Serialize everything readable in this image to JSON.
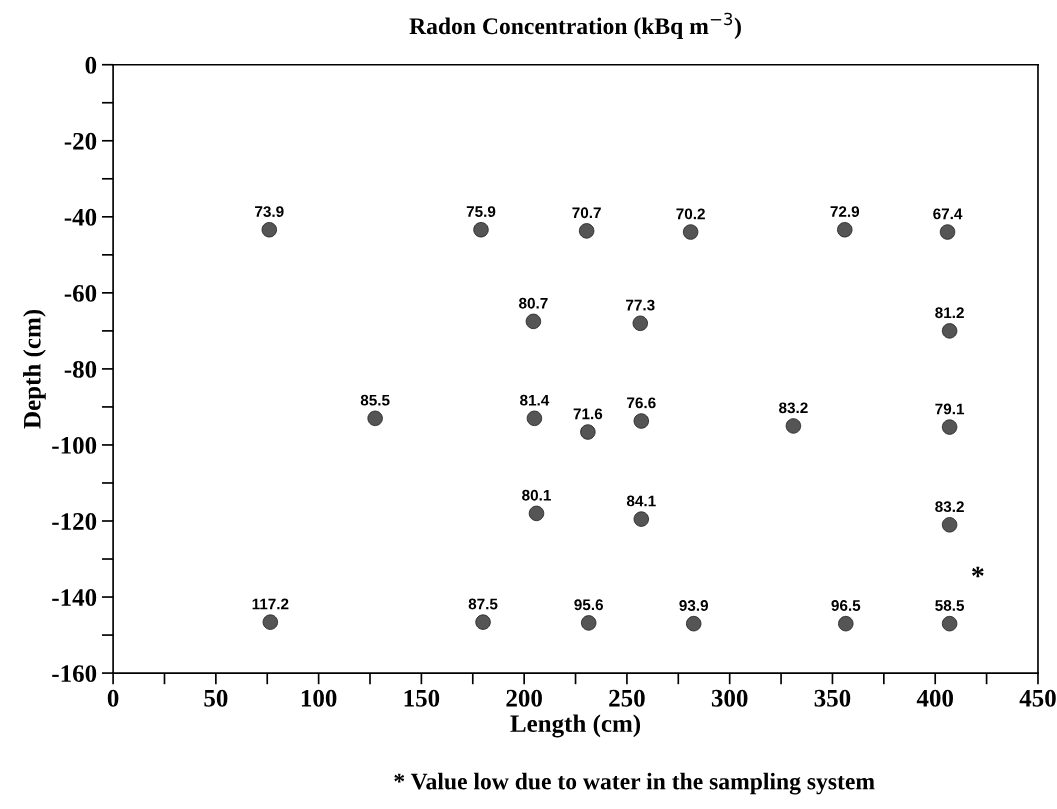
{
  "chart_data": {
    "type": "scatter",
    "title": "Radon Concentration (kBq m$^{−3}$)",
    "xlabel": "Length (cm)",
    "ylabel": "Depth (cm)",
    "x": [
      76,
      179,
      230.4,
      281,
      356,
      406,
      204.5,
      256.5,
      407,
      127.5,
      205,
      231,
      257,
      331,
      407,
      206,
      257,
      407,
      76.5,
      180,
      231.4,
      282.5,
      356.5,
      407
    ],
    "series": [
      {
        "color": "#555555",
        "values": [
          -43.4,
          -43.4,
          -43.7,
          -44,
          -43.4,
          -44,
          -67.5,
          -68,
          -70,
          -93,
          -93,
          -96.6,
          -93.7,
          -95,
          -95.3,
          -118,
          -119.5,
          -121,
          -146.6,
          -146.6,
          -146.8,
          -147,
          -147,
          -147
        ]
      }
    ],
    "xlim": [
      0,
      450
    ],
    "ylim": [
      -160,
      0
    ],
    "xticks": [
      0,
      {
        "value": 25,
        "label": null
      },
      50,
      {
        "value": 75,
        "label": null
      },
      100,
      {
        "value": 125,
        "label": null
      },
      150,
      {
        "value": 175,
        "label": null
      },
      200,
      {
        "value": 225,
        "label": null
      },
      250,
      {
        "value": 275,
        "label": null
      },
      300,
      {
        "value": 325,
        "label": null
      },
      350,
      {
        "value": 375,
        "label": null
      },
      400,
      {
        "value": 425,
        "label": null
      },
      450
    ],
    "yticks": [
      -160,
      {
        "value": -150,
        "label": null
      },
      -140,
      {
        "value": -130,
        "label": null
      },
      -120,
      {
        "value": -110,
        "label": null
      },
      -100,
      {
        "value": -90,
        "label": null
      },
      -80,
      {
        "value": -70,
        "label": null
      },
      -60,
      {
        "value": -50,
        "label": null
      },
      -40,
      {
        "value": -30,
        "label": null
      },
      -20,
      {
        "value": -10,
        "label": null
      },
      0
    ],
    "marker": "circle",
    "grid": false,
    "legend": false,
    "annotations": [
      {
        "text": "73.9",
        "x": 76,
        "y": -43.4
      },
      {
        "text": "75.9",
        "x": 179,
        "y": -43.4
      },
      {
        "text": "70.7",
        "x": 230.4,
        "y": -43.7
      },
      {
        "text": "70.2",
        "x": 281,
        "y": -44
      },
      {
        "text": "72.9",
        "x": 356,
        "y": -43.4
      },
      {
        "text": "67.4",
        "x": 406,
        "y": -44
      },
      {
        "text": "80.7",
        "x": 204.5,
        "y": -67.5
      },
      {
        "text": "77.3",
        "x": 256.5,
        "y": -68
      },
      {
        "text": "81.2",
        "x": 407,
        "y": -70
      },
      {
        "text": "85.5",
        "x": 127.5,
        "y": -93
      },
      {
        "text": "81.4",
        "x": 205,
        "y": -93
      },
      {
        "text": "71.6",
        "x": 231,
        "y": -96.6
      },
      {
        "text": "76.6",
        "x": 257,
        "y": -93.7
      },
      {
        "text": "83.2",
        "x": 331,
        "y": -95
      },
      {
        "text": "79.1",
        "x": 407,
        "y": -95.3
      },
      {
        "text": "80.1",
        "x": 206,
        "y": -118
      },
      {
        "text": "84.1",
        "x": 257,
        "y": -119.5
      },
      {
        "text": "83.2",
        "x": 407,
        "y": -121
      },
      {
        "text": "117.2",
        "x": 76.5,
        "y": -146.6
      },
      {
        "text": "87.5",
        "x": 180,
        "y": -146.6
      },
      {
        "text": "95.6",
        "x": 231.4,
        "y": -146.8
      },
      {
        "text": "93.9",
        "x": 282.5,
        "y": -147
      },
      {
        "text": "96.5",
        "x": 356.5,
        "y": -147
      },
      {
        "text": "58.5",
        "x": 407,
        "y": -147
      },
      "*",
      "* Value low due to water in the sampling system"
    ]
  }
}
